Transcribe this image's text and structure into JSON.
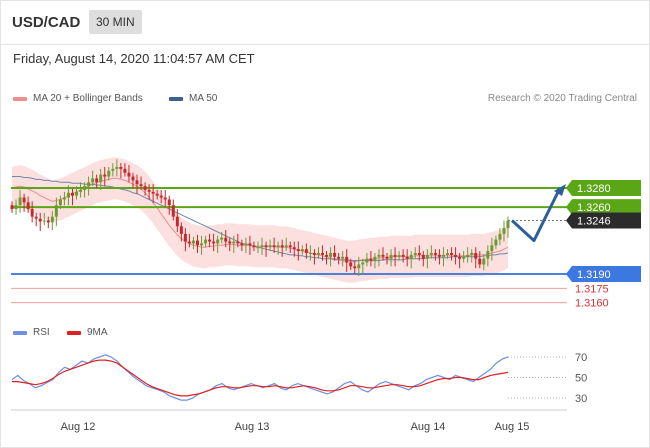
{
  "header": {
    "pair": "USD/CAD",
    "timeframe": "30 MIN"
  },
  "datetime": "Friday, August 14, 2020 11:04:57 AM CET",
  "legend": [
    {
      "label": "MA 20 + Bollinger Bands",
      "color": "#f08d8d"
    },
    {
      "label": "MA 50",
      "color": "#3b5f8f"
    }
  ],
  "credit": "Research © 2020 Trading Central",
  "rsi_legend": [
    {
      "label": "RSI",
      "color": "#6f8fe8"
    },
    {
      "label": "9MA",
      "color": "#e02020"
    }
  ],
  "colors": {
    "up": "#6e9a35",
    "down": "#c8282b",
    "resistance": "#5aa617",
    "support": "#4a80e0",
    "minor_support": "#f0a0a0",
    "arrow": "#2f5f9a"
  },
  "chart_data": [
    {
      "type": "candlestick",
      "title": "USD/CAD 30 MIN",
      "y_range": [
        1.3185,
        1.3315
      ],
      "series_ohlc_close": [
        1.3258,
        1.3262,
        1.327,
        1.3265,
        1.3258,
        1.325,
        1.3248,
        1.3245,
        1.3246,
        1.3244,
        1.325,
        1.3262,
        1.3268,
        1.327,
        1.3275,
        1.3272,
        1.3276,
        1.3278,
        1.3282,
        1.3286,
        1.329,
        1.3286,
        1.3294,
        1.3292,
        1.3298,
        1.33,
        1.3302,
        1.33,
        1.3296,
        1.3292,
        1.3288,
        1.3284,
        1.3282,
        1.3278,
        1.3276,
        1.3274,
        1.3272,
        1.327,
        1.3268,
        1.3262,
        1.325,
        1.324,
        1.3232,
        1.3224,
        1.3222,
        1.3225,
        1.322,
        1.3222,
        1.3226,
        1.3224,
        1.3222,
        1.3226,
        1.3228,
        1.3224,
        1.3222,
        1.3224,
        1.3222,
        1.322,
        1.3222,
        1.322,
        1.3218,
        1.3218,
        1.322,
        1.3218,
        1.322,
        1.3218,
        1.322,
        1.3218,
        1.322,
        1.3218,
        1.3216,
        1.3214,
        1.3216,
        1.3212,
        1.3212,
        1.321,
        1.3212,
        1.321,
        1.3208,
        1.3212,
        1.3208,
        1.3206,
        1.3208,
        1.3202,
        1.3198,
        1.3196,
        1.32,
        1.3202,
        1.3206,
        1.3204,
        1.3208,
        1.321,
        1.3208,
        1.3206,
        1.321,
        1.3208,
        1.321,
        1.3208,
        1.3206,
        1.321,
        1.3212,
        1.321,
        1.3206,
        1.321,
        1.3212,
        1.321,
        1.3208,
        1.321,
        1.3212,
        1.321,
        1.3208,
        1.3206,
        1.3208,
        1.321,
        1.3212,
        1.3206,
        1.32,
        1.3206,
        1.3214,
        1.322,
        1.3226,
        1.3232,
        1.3238,
        1.3246
      ],
      "ma20": [
        1.328,
        1.3281,
        1.3282,
        1.3281,
        1.3279,
        1.3277,
        1.3275,
        1.3272,
        1.327,
        1.3268,
        1.3266,
        1.3267,
        1.3268,
        1.327,
        1.3272,
        1.3274,
        1.3276,
        1.3278,
        1.328,
        1.3282,
        1.3284,
        1.3286,
        1.3287,
        1.3288,
        1.3289,
        1.329,
        1.329,
        1.3289,
        1.3288,
        1.3286,
        1.3284,
        1.3282,
        1.3279,
        1.3275,
        1.327,
        1.3265,
        1.3259,
        1.3253,
        1.3247,
        1.3241,
        1.3236,
        1.3231,
        1.3227,
        1.3224,
        1.3222,
        1.322,
        1.3219,
        1.3218,
        1.3218,
        1.3219,
        1.3219,
        1.322,
        1.322,
        1.3221,
        1.3221,
        1.3221,
        1.322,
        1.322,
        1.322,
        1.322,
        1.3219,
        1.3219,
        1.3219,
        1.3219,
        1.3219,
        1.3219,
        1.3218,
        1.3218,
        1.3218,
        1.3217,
        1.3216,
        1.3215,
        1.3214,
        1.3213,
        1.3212,
        1.3211,
        1.321,
        1.3209,
        1.3208,
        1.3207,
        1.3206,
        1.3205,
        1.3204,
        1.3203,
        1.3203,
        1.3203,
        1.3204,
        1.3205,
        1.3205,
        1.3206,
        1.3206,
        1.3207,
        1.3207,
        1.3207,
        1.3208,
        1.3208,
        1.3208,
        1.3208,
        1.3208,
        1.3208,
        1.3209,
        1.3209,
        1.3209,
        1.3209,
        1.3209,
        1.3209,
        1.3209,
        1.3209,
        1.3209,
        1.3209,
        1.3209,
        1.3209,
        1.3209,
        1.3209,
        1.321,
        1.321,
        1.321,
        1.321,
        1.3211,
        1.3212,
        1.3213,
        1.3214,
        1.3216,
        1.3218
      ],
      "ma50": [
        1.3292,
        1.3292,
        1.3292,
        1.3291,
        1.3291,
        1.329,
        1.3289,
        1.3289,
        1.3288,
        1.3288,
        1.3287,
        1.3287,
        1.3286,
        1.3286,
        1.3286,
        1.3285,
        1.3285,
        1.3285,
        1.3284,
        1.3284,
        1.3284,
        1.3283,
        1.3283,
        1.3282,
        1.3282,
        1.3281,
        1.328,
        1.3279,
        1.3278,
        1.3277,
        1.3275,
        1.3274,
        1.3272,
        1.327,
        1.3268,
        1.3266,
        1.3264,
        1.3262,
        1.326,
        1.3258,
        1.3256,
        1.3254,
        1.3252,
        1.325,
        1.3248,
        1.3246,
        1.3244,
        1.3242,
        1.324,
        1.3238,
        1.3236,
        1.3234,
        1.3232,
        1.323,
        1.3228,
        1.3226,
        1.3224,
        1.3222,
        1.3221,
        1.322,
        1.3219,
        1.3218,
        1.3217,
        1.3216,
        1.3215,
        1.3214,
        1.3213,
        1.3212,
        1.3211,
        1.321,
        1.321,
        1.3209,
        1.3209,
        1.3208,
        1.3208,
        1.3207,
        1.3207,
        1.3206,
        1.3206,
        1.3206,
        1.3205,
        1.3205,
        1.3205,
        1.3205,
        1.3204,
        1.3204,
        1.3204,
        1.3204,
        1.3204,
        1.3204,
        1.3204,
        1.3204,
        1.3205,
        1.3205,
        1.3205,
        1.3205,
        1.3205,
        1.3205,
        1.3206,
        1.3206,
        1.3206,
        1.3206,
        1.3206,
        1.3207,
        1.3207,
        1.3207,
        1.3207,
        1.3207,
        1.3207,
        1.3208,
        1.3208,
        1.3208,
        1.3208,
        1.3208,
        1.3208,
        1.3208,
        1.3208,
        1.3209,
        1.3209,
        1.321,
        1.321,
        1.3211,
        1.3211,
        1.3212
      ],
      "bb_width": 0.0022,
      "levels": [
        {
          "value": "1.3280",
          "kind": "resistance"
        },
        {
          "value": "1.3260",
          "kind": "resistance"
        },
        {
          "value": "1.3246",
          "kind": "last"
        },
        {
          "value": "1.3190",
          "kind": "support"
        },
        {
          "value": "1.3175",
          "kind": "minor_support"
        },
        {
          "value": "1.3160",
          "kind": "minor_support"
        }
      ],
      "forecast_arrow": [
        1.3246,
        1.3225,
        1.328
      ],
      "x_ticks": [
        "Aug 12",
        "Aug 13",
        "Aug 14",
        "Aug 15"
      ]
    },
    {
      "type": "line",
      "title": "RSI",
      "y_ticks": [
        "70",
        "50",
        "30"
      ],
      "y_range": [
        20,
        80
      ],
      "series": [
        {
          "name": "RSI",
          "values": [
            48,
            52,
            47,
            44,
            40,
            42,
            45,
            48,
            55,
            60,
            58,
            62,
            66,
            64,
            68,
            70,
            72,
            70,
            66,
            60,
            55,
            50,
            46,
            42,
            40,
            38,
            36,
            32,
            30,
            28,
            28,
            30,
            34,
            36,
            38,
            42,
            44,
            40,
            38,
            40,
            42,
            44,
            42,
            40,
            42,
            44,
            40,
            38,
            42,
            44,
            42,
            40,
            38,
            36,
            34,
            36,
            40,
            44,
            46,
            42,
            38,
            36,
            40,
            44,
            46,
            44,
            42,
            40,
            38,
            42,
            44,
            48,
            50,
            52,
            50,
            48,
            52,
            50,
            48,
            46,
            50,
            54,
            58,
            64,
            68,
            70
          ]
        },
        {
          "name": "9MA",
          "values": [
            46,
            46,
            45,
            44,
            43,
            44,
            46,
            49,
            53,
            56,
            58,
            60,
            62,
            64,
            66,
            67,
            67,
            66,
            64,
            60,
            56,
            52,
            48,
            44,
            41,
            39,
            37,
            35,
            33,
            32,
            32,
            33,
            34,
            36,
            38,
            40,
            41,
            41,
            40,
            40,
            41,
            42,
            42,
            41,
            41,
            42,
            41,
            40,
            40,
            41,
            42,
            41,
            40,
            38,
            37,
            37,
            38,
            40,
            42,
            42,
            41,
            40,
            40,
            41,
            42,
            43,
            43,
            42,
            41,
            41,
            42,
            44,
            46,
            48,
            49,
            49,
            50,
            50,
            49,
            48,
            48,
            50,
            52,
            53,
            54,
            55
          ]
        }
      ]
    }
  ]
}
